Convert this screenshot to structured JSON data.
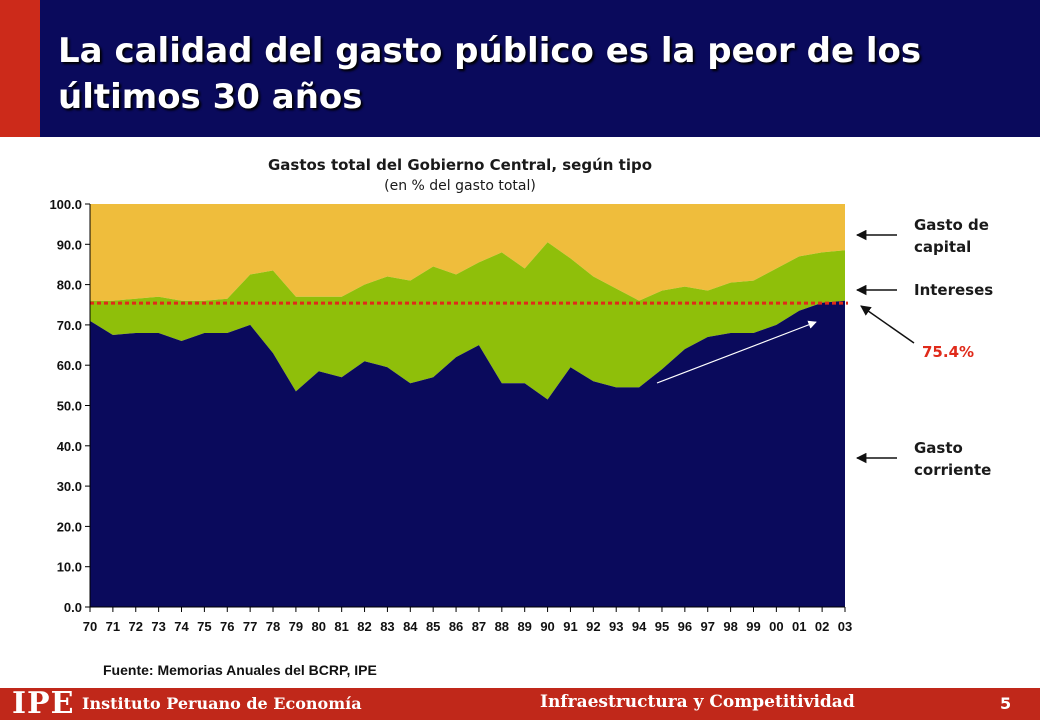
{
  "header": {
    "title": "La calidad del gasto público es la peor de los últimos 30 años"
  },
  "chart_data": {
    "type": "area",
    "title": "Gastos total del Gobierno Central, según tipo",
    "subtitle": "(en % del gasto total)",
    "x": [
      "70",
      "71",
      "72",
      "73",
      "74",
      "75",
      "76",
      "77",
      "78",
      "79",
      "80",
      "81",
      "82",
      "83",
      "84",
      "85",
      "86",
      "87",
      "88",
      "89",
      "90",
      "91",
      "92",
      "93",
      "94",
      "95",
      "96",
      "97",
      "98",
      "99",
      "00",
      "01",
      "02",
      "03"
    ],
    "ylim": [
      0,
      100
    ],
    "yticks": [
      "0.0",
      "10.0",
      "20.0",
      "30.0",
      "40.0",
      "50.0",
      "60.0",
      "70.0",
      "80.0",
      "90.0",
      "100.0"
    ],
    "stack_tops": {
      "corriente": [
        71,
        67.5,
        68,
        68,
        66,
        68,
        68,
        70,
        63,
        53.5,
        58.5,
        57,
        61,
        59.5,
        55.5,
        57,
        62,
        65,
        55.5,
        55.5,
        51.5,
        59.5,
        56,
        54.5,
        54.5,
        59,
        64,
        67,
        68,
        68,
        70,
        73.5,
        75.5,
        76
      ],
      "corriente_mas_intereses": [
        76,
        76,
        76.5,
        77,
        76,
        76,
        76.5,
        82.5,
        83.5,
        77,
        77,
        77,
        80,
        82,
        81,
        84.5,
        82.5,
        85.5,
        88,
        84,
        90.5,
        86.5,
        82,
        79,
        76,
        78.5,
        79.5,
        78.5,
        80.5,
        81,
        84,
        87,
        88,
        88.5
      ],
      "total": [
        100,
        100,
        100,
        100,
        100,
        100,
        100,
        100,
        100,
        100,
        100,
        100,
        100,
        100,
        100,
        100,
        100,
        100,
        100,
        100,
        100,
        100,
        100,
        100,
        100,
        100,
        100,
        100,
        100,
        100,
        100,
        100,
        100,
        100
      ]
    },
    "reference_line": {
      "value": 75.4,
      "label": "75.4%",
      "color": "#e02a1a"
    },
    "colors": {
      "corriente": "#0a0a5c",
      "intereses": "#8fbf0a",
      "capital": "#efbd3c"
    },
    "annotations": {
      "capital": "Gasto de capital",
      "intereses": "Intereses",
      "corriente": "Gasto corriente"
    },
    "source": "Fuente: Memorias Anuales del BCRP, IPE"
  },
  "footer": {
    "logo": "IPE",
    "org": "Instituto Peruano de Economía",
    "section": "Infraestructura y Competitividad",
    "page": "5"
  }
}
